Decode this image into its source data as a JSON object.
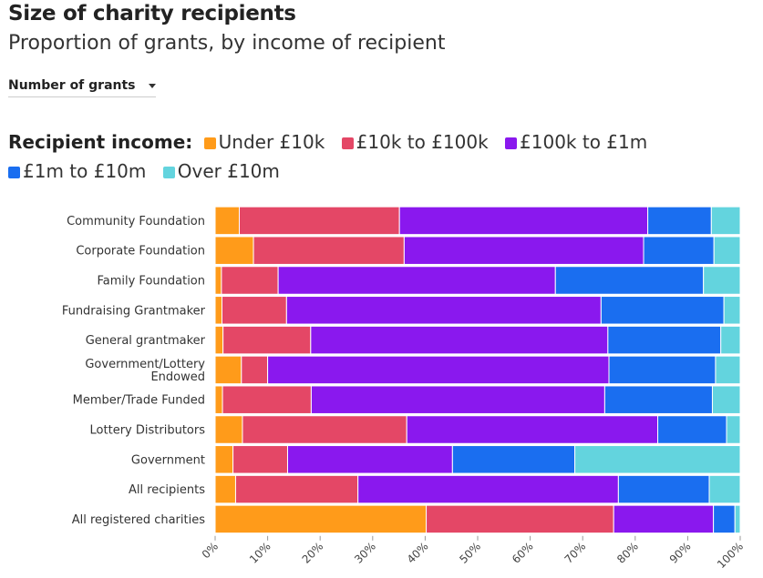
{
  "header": {
    "title": "Size of charity recipients",
    "subtitle": "Proportion of grants, by income of recipient"
  },
  "controls": {
    "measure_select": "Number of grants"
  },
  "legend": {
    "title": "Recipient income:",
    "items": [
      {
        "label": "Under £10k",
        "color": "#FF9B1A"
      },
      {
        "label": "£10k to £100k",
        "color": "#E44766"
      },
      {
        "label": "£100k to £1m",
        "color": "#8A18EE"
      },
      {
        "label": "£1m to £10m",
        "color": "#1A6EF0"
      },
      {
        "label": "Over £10m",
        "color": "#63D4DE"
      }
    ]
  },
  "chart_data": {
    "type": "bar",
    "orientation": "horizontal",
    "stacked": "100%",
    "title": "Size of charity recipients",
    "subtitle": "Proportion of grants, by income of recipient",
    "xlabel": "",
    "ylabel": "",
    "xlim": [
      0,
      100
    ],
    "x_ticks": [
      "0%",
      "10%",
      "20%",
      "30%",
      "40%",
      "50%",
      "60%",
      "70%",
      "80%",
      "90%",
      "100%"
    ],
    "categories": [
      [
        "Community Foundation"
      ],
      [
        "Corporate Foundation"
      ],
      [
        "Family Foundation"
      ],
      [
        "Fundraising Grantmaker"
      ],
      [
        "General grantmaker"
      ],
      [
        "Government/Lottery",
        "Endowed"
      ],
      [
        "Member/Trade Funded"
      ],
      [
        "Lottery Distributors"
      ],
      [
        "Government"
      ],
      [
        "All recipients"
      ],
      [
        "All registered charities"
      ]
    ],
    "series": [
      {
        "name": "Under £10k",
        "color": "#FF9B1A",
        "values": [
          4.6,
          7.3,
          1.2,
          1.3,
          1.5,
          5.0,
          1.4,
          5.2,
          3.4,
          3.9,
          40.2
        ]
      },
      {
        "name": "£10k to £100k",
        "color": "#E44766",
        "values": [
          30.5,
          28.7,
          10.8,
          12.3,
          16.7,
          5.0,
          16.9,
          31.3,
          10.4,
          23.3,
          35.7
        ]
      },
      {
        "name": "£100k to £1m",
        "color": "#8A18EE",
        "values": [
          47.3,
          45.6,
          52.8,
          59.9,
          56.6,
          65.0,
          55.9,
          47.8,
          31.4,
          49.6,
          19.0
        ]
      },
      {
        "name": "£1m to £10m",
        "color": "#1A6EF0",
        "values": [
          12.1,
          13.4,
          28.2,
          23.4,
          21.5,
          20.3,
          20.5,
          13.1,
          23.3,
          17.3,
          4.1
        ]
      },
      {
        "name": "Over £10m",
        "color": "#63D4DE",
        "values": [
          5.5,
          5.0,
          7.0,
          3.1,
          3.7,
          4.7,
          5.3,
          2.6,
          31.5,
          5.9,
          1.0
        ]
      }
    ]
  }
}
